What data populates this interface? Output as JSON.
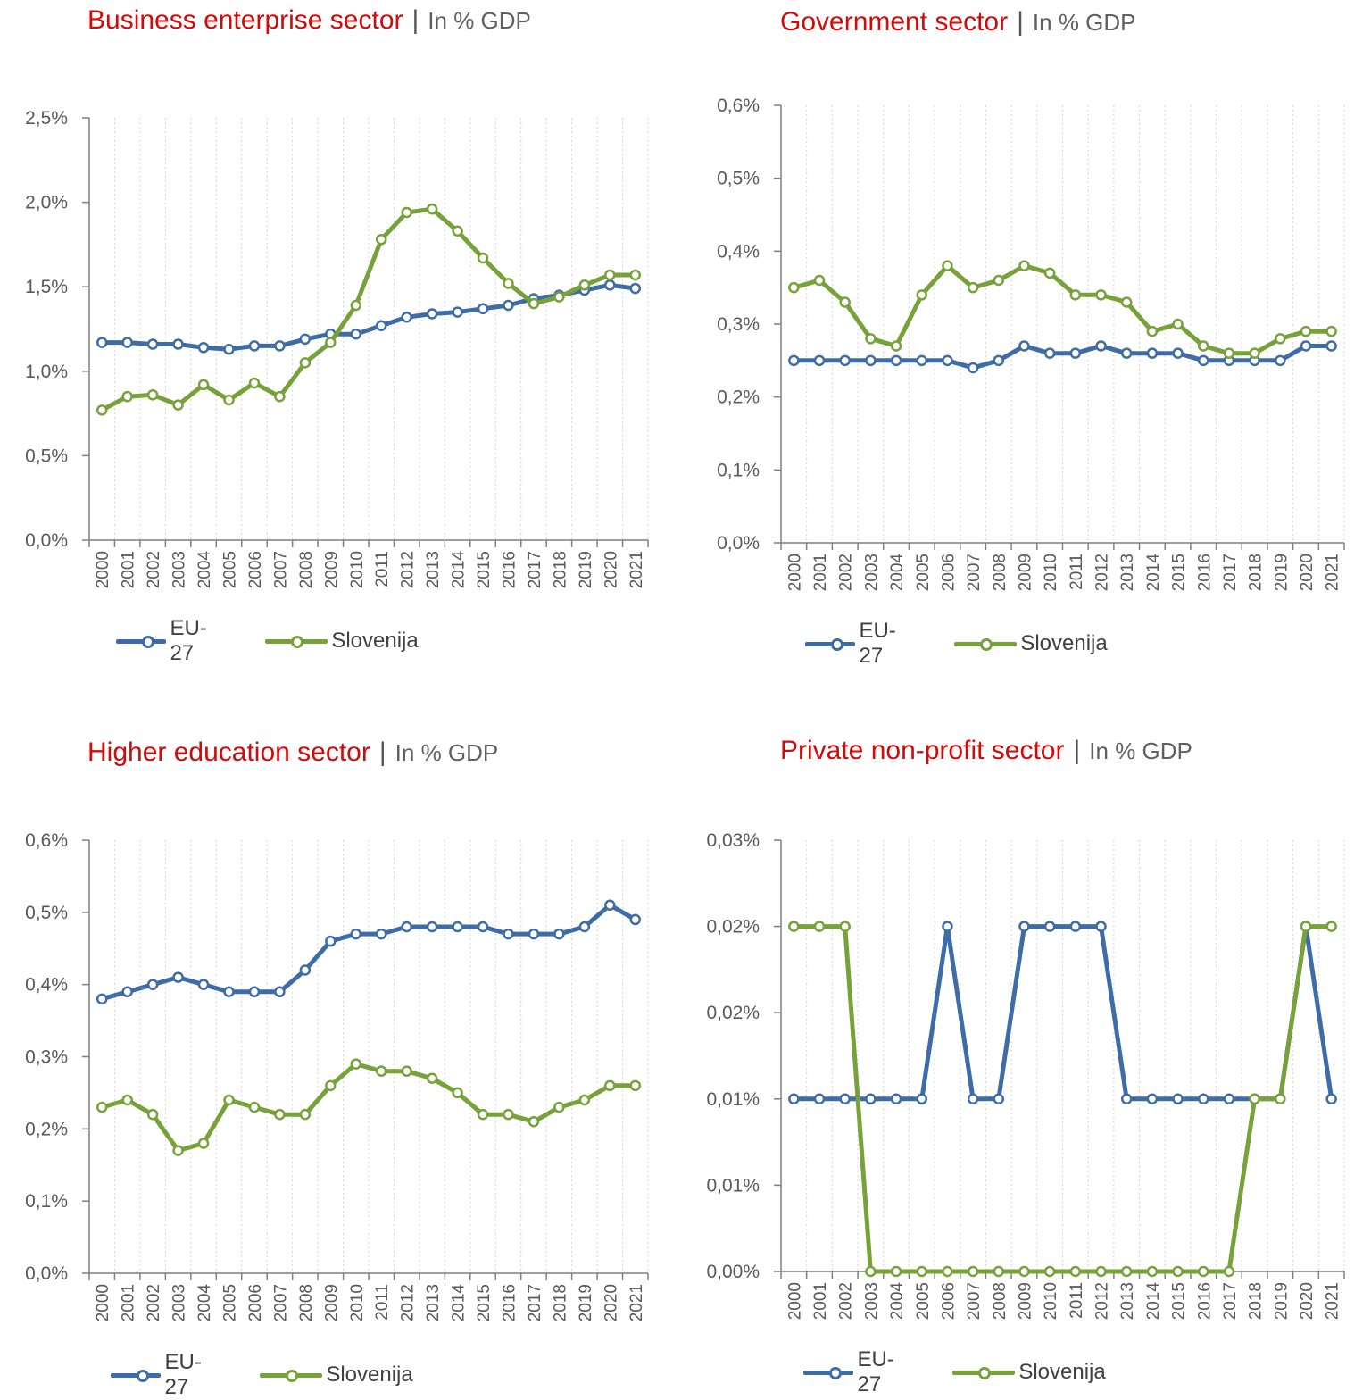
{
  "legend": {
    "eu": "EU-27",
    "si": "Slovenija"
  },
  "colors": {
    "eu": "#3e6ca6",
    "si": "#77a23a",
    "title": "#d10a0a"
  },
  "chart_data": [
    {
      "type": "line",
      "title": "Business enterprise sector",
      "subtitle": "In % GDP",
      "x": [
        "2000",
        "2001",
        "2002",
        "2003",
        "2004",
        "2005",
        "2006",
        "2007",
        "2008",
        "2009",
        "2010",
        "2011",
        "2012",
        "2013",
        "2014",
        "2015",
        "2016",
        "2017",
        "2018",
        "2019",
        "2020",
        "2021"
      ],
      "ylim": [
        0,
        2.5
      ],
      "yticks": [
        "0,0%",
        "0,5%",
        "1,0%",
        "1,5%",
        "2,0%",
        "2,5%"
      ],
      "grid": "vertical-dotted",
      "legend_position": "bottom",
      "series": [
        {
          "name": "EU-27",
          "values": [
            1.17,
            1.17,
            1.16,
            1.16,
            1.14,
            1.13,
            1.15,
            1.15,
            1.19,
            1.22,
            1.22,
            1.27,
            1.32,
            1.34,
            1.35,
            1.37,
            1.39,
            1.43,
            1.45,
            1.48,
            1.51,
            1.49
          ]
        },
        {
          "name": "Slovenija",
          "values": [
            0.77,
            0.85,
            0.86,
            0.8,
            0.92,
            0.83,
            0.93,
            0.85,
            1.05,
            1.17,
            1.39,
            1.78,
            1.94,
            1.96,
            1.83,
            1.67,
            1.52,
            1.4,
            1.44,
            1.51,
            1.57,
            1.57
          ]
        }
      ]
    },
    {
      "type": "line",
      "title": "Government sector",
      "subtitle": "In % GDP",
      "x": [
        "2000",
        "2001",
        "2002",
        "2003",
        "2004",
        "2005",
        "2006",
        "2007",
        "2008",
        "2009",
        "2010",
        "2011",
        "2012",
        "2013",
        "2014",
        "2015",
        "2016",
        "2017",
        "2018",
        "2019",
        "2020",
        "2021"
      ],
      "ylim": [
        0,
        0.6
      ],
      "yticks": [
        "0,0%",
        "0,1%",
        "0,2%",
        "0,3%",
        "0,4%",
        "0,5%",
        "0,6%"
      ],
      "grid": "vertical-dotted",
      "legend_position": "bottom",
      "series": [
        {
          "name": "EU-27",
          "values": [
            0.25,
            0.25,
            0.25,
            0.25,
            0.25,
            0.25,
            0.25,
            0.24,
            0.25,
            0.27,
            0.26,
            0.26,
            0.27,
            0.26,
            0.26,
            0.26,
            0.25,
            0.25,
            0.25,
            0.25,
            0.27,
            0.27
          ]
        },
        {
          "name": "Slovenija",
          "values": [
            0.35,
            0.36,
            0.33,
            0.28,
            0.27,
            0.34,
            0.38,
            0.35,
            0.36,
            0.38,
            0.37,
            0.34,
            0.34,
            0.33,
            0.29,
            0.3,
            0.27,
            0.26,
            0.26,
            0.28,
            0.29,
            0.29
          ]
        }
      ]
    },
    {
      "type": "line",
      "title": "Higher education sector",
      "subtitle": "In % GDP",
      "x": [
        "2000",
        "2001",
        "2002",
        "2003",
        "2004",
        "2005",
        "2006",
        "2007",
        "2008",
        "2009",
        "2010",
        "2011",
        "2012",
        "2013",
        "2014",
        "2015",
        "2016",
        "2017",
        "2018",
        "2019",
        "2020",
        "2021"
      ],
      "ylim": [
        0,
        0.6
      ],
      "yticks": [
        "0,0%",
        "0,1%",
        "0,2%",
        "0,3%",
        "0,4%",
        "0,5%",
        "0,6%"
      ],
      "grid": "vertical-dotted",
      "legend_position": "bottom",
      "series": [
        {
          "name": "EU-27",
          "values": [
            0.38,
            0.39,
            0.4,
            0.41,
            0.4,
            0.39,
            0.39,
            0.39,
            0.42,
            0.46,
            0.47,
            0.47,
            0.48,
            0.48,
            0.48,
            0.48,
            0.47,
            0.47,
            0.47,
            0.48,
            0.51,
            0.49
          ]
        },
        {
          "name": "Slovenija",
          "values": [
            0.23,
            0.24,
            0.22,
            0.17,
            0.18,
            0.24,
            0.23,
            0.22,
            0.22,
            0.26,
            0.29,
            0.28,
            0.28,
            0.27,
            0.25,
            0.22,
            0.22,
            0.21,
            0.23,
            0.24,
            0.26,
            0.26
          ]
        }
      ]
    },
    {
      "type": "line",
      "title": "Private non-profit sector",
      "subtitle": "In % GDP",
      "x": [
        "2000",
        "2001",
        "2002",
        "2003",
        "2004",
        "2005",
        "2006",
        "2007",
        "2008",
        "2009",
        "2010",
        "2011",
        "2012",
        "2013",
        "2014",
        "2015",
        "2016",
        "2017",
        "2018",
        "2019",
        "2020",
        "2021"
      ],
      "ylim": [
        0,
        0.025
      ],
      "yticks": [
        "0,00%",
        "0,01%",
        "0,01%",
        "0,02%",
        "0,02%",
        "0,03%"
      ],
      "grid": "vertical-dotted",
      "legend_position": "bottom",
      "series": [
        {
          "name": "EU-27",
          "values": [
            0.01,
            0.01,
            0.01,
            0.01,
            0.01,
            0.01,
            0.02,
            0.01,
            0.01,
            0.02,
            0.02,
            0.02,
            0.02,
            0.01,
            0.01,
            0.01,
            0.01,
            0.01,
            0.01,
            0.01,
            0.02,
            0.01
          ]
        },
        {
          "name": "Slovenija",
          "values": [
            0.02,
            0.02,
            0.02,
            0,
            0,
            0,
            0,
            0,
            0,
            0,
            0,
            0,
            0,
            0,
            0,
            0,
            0,
            0,
            0.01,
            0.01,
            0.02,
            0.02
          ]
        }
      ]
    }
  ]
}
